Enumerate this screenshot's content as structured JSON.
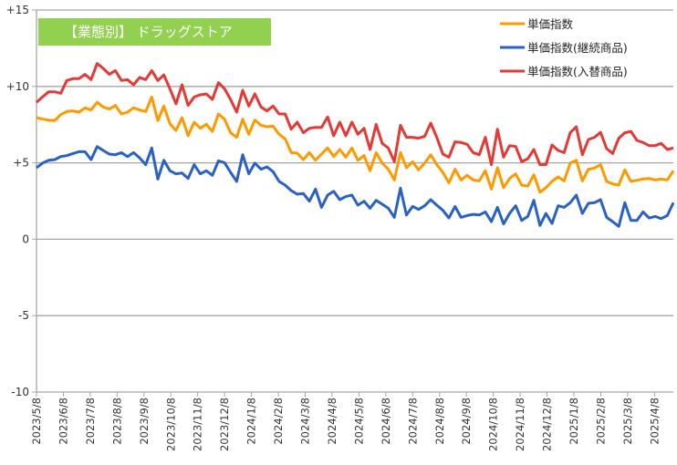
{
  "chart_data": {
    "type": "line",
    "title": "【業態別】 ドラッグストア",
    "xlabel": "",
    "ylabel": "",
    "ylim": [
      -10,
      15
    ],
    "yticks": [
      15,
      10,
      5,
      0,
      -5,
      -10
    ],
    "ytick_labels": [
      "+15",
      "+10",
      "+5",
      "0",
      "-5",
      "-10"
    ],
    "grid": true,
    "legend_position": "top-right",
    "x_tick_labels": [
      "2023/5/8",
      "2023/6/8",
      "2023/7/8",
      "2023/8/8",
      "2023/9/8",
      "2023/10/8",
      "2023/11/8",
      "2023/12/8",
      "2024/1/8",
      "2024/2/8",
      "2024/3/8",
      "2024/4/8",
      "2024/5/8",
      "2024/6/8",
      "2024/7/8",
      "2024/8/8",
      "2024/9/8",
      "2024/10/8",
      "2024/11/8",
      "2024/12/8",
      "2025/1/8",
      "2025/2/8",
      "2025/3/8",
      "2025/4/8"
    ],
    "series": [
      {
        "name": "単価指数",
        "color": "#FF9900",
        "values": [
          7.96,
          7.86,
          7.8,
          7.76,
          8.16,
          8.36,
          8.4,
          8.32,
          8.6,
          8.46,
          8.96,
          8.66,
          8.52,
          8.76,
          8.2,
          8.32,
          8.6,
          8.46,
          8.36,
          9.31,
          7.76,
          8.72,
          7.56,
          7.12,
          7.96,
          6.77,
          7.66,
          7.26,
          7.52,
          7.06,
          8.2,
          7.86,
          6.97,
          6.67,
          7.86,
          6.87,
          7.8,
          7.46,
          7.36,
          7.4,
          6.87,
          6.57,
          5.67,
          5.63,
          5.21,
          5.67,
          5.17,
          5.57,
          5.97,
          5.41,
          5.87,
          5.37,
          5.97,
          5.17,
          5.47,
          4.48,
          5.67,
          4.98,
          4.58,
          3.88,
          5.67,
          4.68,
          5.07,
          4.54,
          4.98,
          5.53,
          4.88,
          4.38,
          3.68,
          4.58,
          3.88,
          4.18,
          3.88,
          3.82,
          4.48,
          3.28,
          4.68,
          3.38,
          3.98,
          4.28,
          3.54,
          3.48,
          4.22,
          3.08,
          3.38,
          3.78,
          4.08,
          3.82,
          4.98,
          5.17,
          3.82,
          4.58,
          4.66,
          4.88,
          3.78,
          3.62,
          3.54,
          4.54,
          3.78,
          3.86,
          3.94,
          3.98,
          3.88,
          3.94,
          3.88,
          4.48
        ]
      },
      {
        "name": "単価指数(継続商品)",
        "color": "#2962C4",
        "values": [
          4.68,
          4.98,
          5.17,
          5.21,
          5.41,
          5.47,
          5.61,
          5.73,
          5.73,
          5.21,
          6.07,
          5.81,
          5.57,
          5.53,
          5.67,
          5.41,
          5.67,
          5.33,
          4.88,
          5.97,
          3.94,
          5.17,
          4.48,
          4.28,
          4.34,
          3.98,
          4.88,
          4.28,
          4.48,
          4.18,
          5.13,
          5.01,
          4.38,
          3.78,
          5.53,
          4.28,
          4.98,
          4.58,
          4.74,
          4.42,
          3.78,
          3.54,
          3.18,
          2.95,
          2.99,
          2.49,
          3.28,
          2.09,
          2.89,
          3.14,
          2.59,
          2.79,
          2.89,
          2.23,
          2.49,
          2.03,
          2.55,
          2.29,
          2.03,
          1.43,
          3.34,
          1.59,
          2.15,
          1.95,
          2.19,
          2.59,
          2.23,
          1.89,
          1.39,
          2.15,
          1.43,
          1.55,
          1.63,
          1.59,
          1.79,
          1.15,
          2.09,
          1.0,
          1.69,
          2.19,
          1.23,
          1.49,
          2.55,
          0.9,
          1.69,
          1.03,
          2.19,
          2.09,
          2.39,
          2.89,
          1.69,
          2.35,
          2.39,
          2.59,
          1.43,
          1.15,
          0.84,
          2.39,
          1.23,
          1.23,
          1.79,
          1.39,
          1.49,
          1.35,
          1.55,
          2.39
        ]
      },
      {
        "name": "単価指数(入替商品)",
        "color": "#E53935",
        "values": [
          8.96,
          9.31,
          9.65,
          9.65,
          9.55,
          10.39,
          10.51,
          10.51,
          10.79,
          10.45,
          11.5,
          11.18,
          10.79,
          11.04,
          10.39,
          10.45,
          10.11,
          10.59,
          10.45,
          11.04,
          10.39,
          10.75,
          9.85,
          8.86,
          10.11,
          8.76,
          9.31,
          9.45,
          9.51,
          9.15,
          10.25,
          9.85,
          9.15,
          8.32,
          9.75,
          8.72,
          9.51,
          8.66,
          8.4,
          8.72,
          8.2,
          8.2,
          7.2,
          7.66,
          6.97,
          7.26,
          7.32,
          7.32,
          8.0,
          6.77,
          7.66,
          6.77,
          7.66,
          6.87,
          7.26,
          5.87,
          7.52,
          6.27,
          5.97,
          5.07,
          7.46,
          6.67,
          6.67,
          6.61,
          6.73,
          7.6,
          6.67,
          5.57,
          5.37,
          6.37,
          6.33,
          6.21,
          5.67,
          5.53,
          6.67,
          4.88,
          7.2,
          5.37,
          6.13,
          6.07,
          5.07,
          5.27,
          5.87,
          4.88,
          4.88,
          6.17,
          5.81,
          5.67,
          6.97,
          7.36,
          5.53,
          6.53,
          6.67,
          7.0,
          5.93,
          5.61,
          6.61,
          6.97,
          7.06,
          6.47,
          6.33,
          6.13,
          6.13,
          6.27,
          5.87,
          5.97
        ]
      }
    ]
  }
}
